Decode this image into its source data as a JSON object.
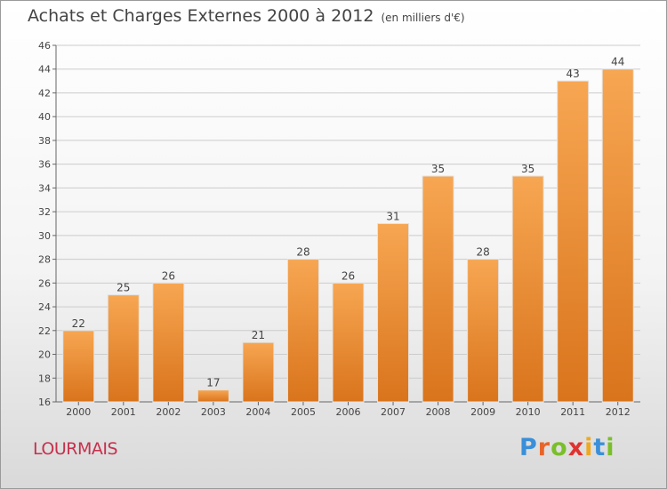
{
  "chart_data": {
    "type": "bar",
    "title": "Achats et Charges Externes 2000 à 2012",
    "subtitle": "(en milliers d'€)",
    "categories": [
      "2000",
      "2001",
      "2002",
      "2003",
      "2004",
      "2005",
      "2006",
      "2007",
      "2008",
      "2009",
      "2010",
      "2011",
      "2012"
    ],
    "values": [
      22,
      25,
      26,
      17,
      21,
      28,
      26,
      31,
      35,
      28,
      35,
      43,
      44
    ],
    "ylim": [
      16,
      46
    ],
    "yticks": [
      16,
      18,
      20,
      22,
      24,
      26,
      28,
      30,
      32,
      34,
      36,
      38,
      40,
      42,
      44,
      46
    ],
    "grid": true,
    "colors": {
      "bar_top": "#f7a652",
      "bar_bottom": "#d9741c",
      "grid": "#cccccc"
    }
  },
  "footer": {
    "place": "LOURMAIS",
    "logo": "Proxiti",
    "logo_colors": [
      "#3b8fd9",
      "#e8642a",
      "#7abf2a",
      "#e0322e",
      "#f0a81c",
      "#3b8fd9",
      "#7abf2a"
    ]
  }
}
